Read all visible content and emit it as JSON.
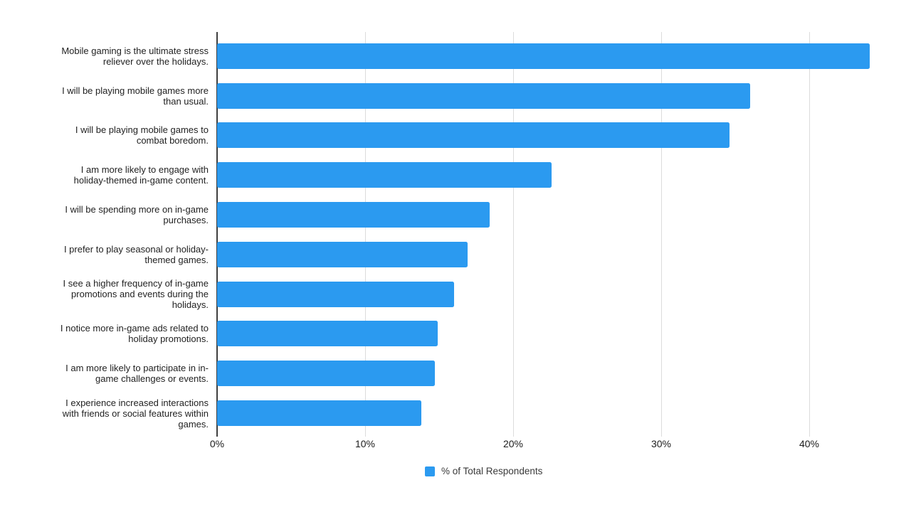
{
  "chart_data": {
    "type": "bar",
    "orientation": "horizontal",
    "title": "",
    "xlabel": "",
    "ylabel": "",
    "categories": [
      "Mobile gaming is the ultimate stress\nreliever over the holidays.",
      "I will be playing mobile games more\nthan usual.",
      "I will be playing mobile games to\ncombat boredom.",
      "I am more likely to engage with\nholiday-themed in-game content.",
      "I will be spending more on in-game\npurchases.",
      "I prefer to play seasonal or holiday-\nthemed games.",
      "I see a higher frequency of in-game\npromotions and events during the\nholidays.",
      "I notice more in-game ads related to\nholiday promotions.",
      "I am more likely to participate in in-\ngame challenges or events.",
      "I experience increased interactions\nwith friends or social features within\ngames."
    ],
    "values": [
      44.1,
      36.0,
      34.6,
      22.6,
      18.4,
      16.9,
      16.0,
      14.9,
      14.7,
      13.8
    ],
    "series_name": "% of Total Respondents",
    "x_tick_labels": [
      "0%",
      "10%",
      "20%",
      "30%",
      "40%"
    ],
    "x_tick_values": [
      0,
      10,
      20,
      30,
      40
    ],
    "xlim": [
      0,
      45.2
    ],
    "grid": true,
    "legend_position": "bottom"
  },
  "legend": {
    "label": "% of Total Respondents",
    "swatch_color": "#2b9af0"
  },
  "colors": {
    "bar": "#2b9af0",
    "gridline": "#dcdcdc",
    "axis_line": "#3f3f3f",
    "label_text": "#222222"
  }
}
